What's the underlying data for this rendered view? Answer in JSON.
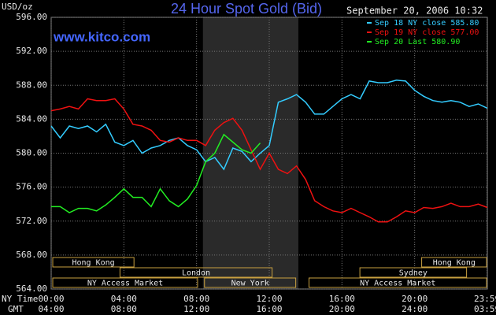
{
  "chart_data": {
    "type": "line",
    "title": "24 Hour Spot Gold (Bid)",
    "timestamp": "September 20, 2006 10:32",
    "y_label": "USD/oz",
    "watermark": "www.kitco.com",
    "x_label": "NY Time",
    "x2_label": "GMT",
    "x": [
      0,
      0.5,
      1,
      1.5,
      2,
      2.5,
      3,
      3.5,
      4,
      4.5,
      5,
      5.5,
      6,
      6.5,
      7,
      7.5,
      8,
      8.5,
      9,
      9.5,
      10,
      10.5,
      11,
      11.5,
      12,
      12.5,
      13,
      13.5,
      14,
      14.5,
      15,
      15.5,
      16,
      16.5,
      17,
      17.5,
      18,
      18.5,
      19,
      19.5,
      20,
      20.5,
      21,
      21.5,
      22,
      22.5,
      23,
      23.5,
      24
    ],
    "xlim": [
      0,
      24
    ],
    "xticks": [
      {
        "value": 0,
        "label": "00:00"
      },
      {
        "value": 4,
        "label": "04:00"
      },
      {
        "value": 8,
        "label": "08:00"
      },
      {
        "value": 12,
        "label": "12:00"
      },
      {
        "value": 16,
        "label": "16:00"
      },
      {
        "value": 20,
        "label": "20:00"
      },
      {
        "value": 23.983,
        "label": "23:59"
      }
    ],
    "x2ticks": [
      {
        "value": 0,
        "label": "04:00"
      },
      {
        "value": 4,
        "label": "08:00"
      },
      {
        "value": 8,
        "label": "12:00"
      },
      {
        "value": 12,
        "label": "16:00"
      },
      {
        "value": 16,
        "label": "20:00"
      },
      {
        "value": 20,
        "label": "24:00"
      },
      {
        "value": 23.983,
        "label": "03:59"
      }
    ],
    "ylim": [
      564,
      596
    ],
    "yticks": [
      {
        "value": 564,
        "label": "564.00"
      },
      {
        "value": 568,
        "label": "568.00"
      },
      {
        "value": 572,
        "label": "572.00"
      },
      {
        "value": 576,
        "label": "576.00"
      },
      {
        "value": 580,
        "label": "580.00"
      },
      {
        "value": 584,
        "label": "584.00"
      },
      {
        "value": 588,
        "label": "588.00"
      },
      {
        "value": 592,
        "label": "592.00"
      },
      {
        "value": 596,
        "label": "596.00"
      }
    ],
    "grid": true,
    "highlight": [
      8.35,
      13.6
    ],
    "sessions": [
      {
        "name": "Hong Kong",
        "start": 0,
        "end": 4.6,
        "row": 0
      },
      {
        "name": "Hong Kong",
        "start": 20.3,
        "end": 24,
        "row": 0
      },
      {
        "name": "London",
        "start": 3.7,
        "end": 12.2,
        "row": 1
      },
      {
        "name": "Sydney",
        "start": 16.9,
        "end": 22.9,
        "row": 1
      },
      {
        "name": "NY Access Market",
        "start": 0,
        "end": 8.1,
        "row": 2
      },
      {
        "name": "New York",
        "start": 8.35,
        "end": 13.5,
        "row": 2
      },
      {
        "name": "NY Access Market",
        "start": 14.1,
        "end": 24,
        "row": 2
      }
    ],
    "series": [
      {
        "name": "Sep 18 NY close 585.80",
        "color": "#33ccff",
        "values": [
          583.2,
          581.8,
          583.2,
          582.9,
          583.2,
          582.5,
          583.4,
          581.3,
          580.9,
          581.5,
          580.0,
          580.6,
          580.9,
          581.5,
          581.8,
          580.9,
          580.4,
          579.0,
          579.5,
          578.1,
          580.6,
          580.2,
          579.0,
          580.0,
          580.9,
          586.0,
          586.4,
          586.9,
          586.0,
          584.6,
          584.6,
          585.5,
          586.4,
          586.9,
          586.4,
          588.5,
          588.3,
          588.3,
          588.6,
          588.5,
          587.4,
          586.7,
          586.2,
          586.0,
          586.2,
          586.0,
          585.5,
          585.8,
          585.3
        ]
      },
      {
        "name": "Sep 19 NY close 577.00",
        "color": "#ee1111",
        "values": [
          585.0,
          585.2,
          585.5,
          585.2,
          586.4,
          586.2,
          586.2,
          586.4,
          585.2,
          583.4,
          583.2,
          582.7,
          581.5,
          581.3,
          581.8,
          581.5,
          581.5,
          580.9,
          582.7,
          583.6,
          584.1,
          582.7,
          580.4,
          578.1,
          580.0,
          578.1,
          577.6,
          578.5,
          576.9,
          574.4,
          573.7,
          573.2,
          573.0,
          573.5,
          573.0,
          572.5,
          571.9,
          571.9,
          572.5,
          573.2,
          573.0,
          573.6,
          573.5,
          573.7,
          574.1,
          573.7,
          573.7,
          574.0,
          573.6
        ]
      },
      {
        "name": "Sep 20 Last 580.90",
        "color": "#22ee22",
        "values": [
          573.7,
          573.7,
          573.0,
          573.5,
          573.5,
          573.2,
          573.9,
          574.8,
          575.8,
          574.8,
          574.8,
          573.7,
          575.8,
          574.4,
          573.7,
          574.6,
          576.2,
          579.0,
          580.0,
          582.2,
          581.3,
          580.4,
          580.0,
          581.2,
          null,
          null,
          null,
          null,
          null,
          null,
          null,
          null,
          null,
          null,
          null,
          null,
          null,
          null,
          null,
          null,
          null,
          null,
          null,
          null,
          null,
          null,
          null,
          null,
          null
        ]
      }
    ]
  }
}
